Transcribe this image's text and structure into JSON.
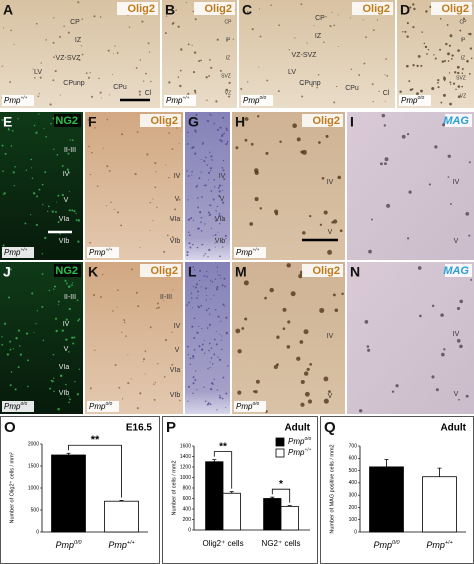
{
  "panels": [
    {
      "letter": "A",
      "stain": "Olig2",
      "stain_color": "#c07a1a",
      "genotype": {
        "base": "Pmp",
        "sup": "+/+"
      },
      "labels": [
        "CP",
        "IZ",
        "VZ-SVZ",
        "LV",
        "CPunp",
        "CPu",
        "Cl"
      ]
    },
    {
      "letter": "B",
      "stain": "Olig2",
      "stain_color": "#c07a1a",
      "genotype": {
        "base": "Pmp",
        "sup": "+/+"
      },
      "labels": [
        "CP",
        "IP",
        "IZ",
        "SVZ",
        "VZ"
      ]
    },
    {
      "letter": "C",
      "stain": "Olig2",
      "stain_color": "#c07a1a",
      "genotype": {
        "base": "Pmp",
        "sup": "0/0"
      },
      "labels": [
        "CP",
        "IZ",
        "VZ-SVZ",
        "LV",
        "CPunp",
        "CPu",
        "Cl"
      ]
    },
    {
      "letter": "D",
      "stain": "Olig2",
      "stain_color": "#c07a1a",
      "genotype": {
        "base": "Pmp",
        "sup": "0/0"
      },
      "labels": [
        "CP",
        "IP",
        "IZ",
        "SVZ",
        "VZ"
      ]
    },
    {
      "letter": "E",
      "stain": "NG2",
      "stain_color": "#2fbf4a",
      "genotype": {
        "base": "Pmp",
        "sup": "+/+"
      },
      "labels": [
        "II-III",
        "IV",
        "V",
        "VIa",
        "VIb"
      ]
    },
    {
      "letter": "F",
      "stain": "Olig2",
      "stain_color": "#c07a1a",
      "genotype": {
        "base": "Pmp",
        "sup": "+/+"
      },
      "labels": [
        "IV",
        "V",
        "VIa",
        "VIb"
      ]
    },
    {
      "letter": "G",
      "labels": [
        "IV",
        "V",
        "VIa",
        "VIb"
      ]
    },
    {
      "letter": "H",
      "stain": "Olig2",
      "stain_color": "#c07a1a",
      "genotype": {
        "base": "Pmp",
        "sup": "+/+"
      },
      "labels": [
        "IV",
        "V"
      ]
    },
    {
      "letter": "I",
      "stain": "MAG",
      "stain_color": "#2a9fd6",
      "labels": [
        "IV",
        "V"
      ]
    },
    {
      "letter": "J",
      "stain": "NG2",
      "stain_color": "#2fbf4a",
      "genotype": {
        "base": "Pmp",
        "sup": "0/0"
      },
      "labels": [
        "II-III",
        "IV",
        "V",
        "VIa",
        "VIb"
      ]
    },
    {
      "letter": "K",
      "stain": "Olig2",
      "stain_color": "#c07a1a",
      "genotype": {
        "base": "Pmp",
        "sup": "0/0"
      },
      "labels": [
        "II-III",
        "IV",
        "V",
        "VIa",
        "VIb"
      ]
    },
    {
      "letter": "L",
      "labels": []
    },
    {
      "letter": "M",
      "stain": "Olig2",
      "stain_color": "#c07a1a",
      "genotype": {
        "base": "Pmp",
        "sup": "0/0"
      },
      "labels": [
        "IV",
        "V"
      ]
    },
    {
      "letter": "N",
      "stain": "MAG",
      "stain_color": "#2a9fd6",
      "labels": [
        "IV",
        "V"
      ]
    }
  ],
  "chart_data": [
    {
      "type": "bar",
      "letter": "O",
      "title": "E16.5",
      "y_label": "Number of Olig2⁺ cells / mm²",
      "categories": [
        {
          "base": "Pmp",
          "sup": "0/0"
        },
        {
          "base": "Pmp",
          "sup": "+/+"
        }
      ],
      "values": [
        1750,
        700
      ],
      "errors": [
        40,
        15
      ],
      "colors": [
        "#000000",
        "#ffffff"
      ],
      "ylim": [
        0,
        2000
      ],
      "yticks": [
        0,
        500,
        1000,
        1500,
        2000
      ],
      "annotations": [
        "**"
      ]
    },
    {
      "type": "grouped-bar",
      "letter": "P",
      "title": "Adult",
      "y_label": "Number of cells / mm2",
      "categories": [
        "Olig2⁺ cells",
        "NG2⁺ cells"
      ],
      "series": [
        {
          "name": {
            "base": "Pmp",
            "sup": "0/0"
          },
          "color": "#000000",
          "values": [
            1300,
            600
          ],
          "errors": [
            40,
            25
          ]
        },
        {
          "name": {
            "base": "Pmp",
            "sup": "+/+"
          },
          "color": "#ffffff",
          "values": [
            700,
            450
          ],
          "errors": [
            30,
            15
          ]
        }
      ],
      "ylim": [
        0,
        1600
      ],
      "yticks": [
        0,
        200,
        400,
        600,
        800,
        1000,
        1200,
        1400,
        1600
      ],
      "annotations": [
        "**",
        "*"
      ],
      "legend": "top-right"
    },
    {
      "type": "bar",
      "letter": "Q",
      "title": "Adult",
      "y_label": "Number of MAG positive cells / mm2",
      "categories": [
        {
          "base": "Pmp",
          "sup": "0/0"
        },
        {
          "base": "Pmp",
          "sup": "+/+"
        }
      ],
      "values": [
        530,
        450
      ],
      "errors": [
        60,
        70
      ],
      "colors": [
        "#000000",
        "#ffffff"
      ],
      "ylim": [
        0,
        700
      ],
      "yticks": [
        0,
        100,
        200,
        300,
        400,
        500,
        600,
        700
      ],
      "annotations": []
    }
  ]
}
